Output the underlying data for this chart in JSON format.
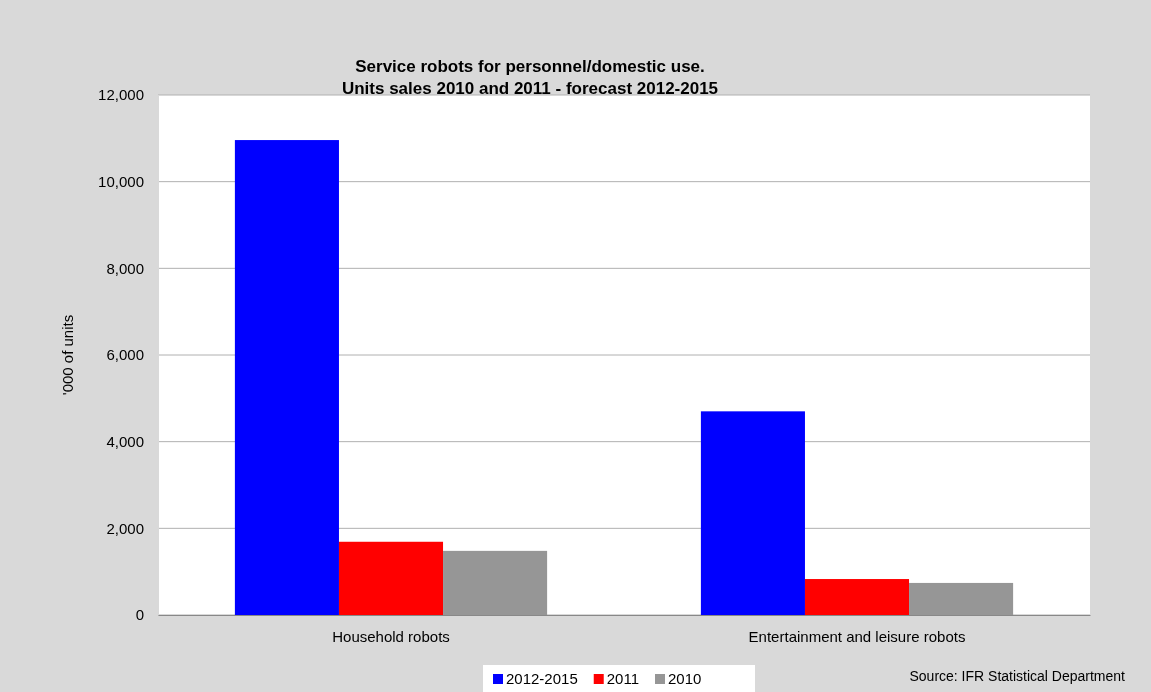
{
  "chart_data": {
    "type": "bar",
    "title": "Service robots for personnel/domestic use.\nUnits sales 2010 and 2011 - forecast 2012-2015",
    "ylabel": "'000 of units",
    "categories": [
      "Household robots",
      "Entertainment and leisure robots"
    ],
    "series": [
      {
        "name": "2012-2015",
        "color": "#0000ff",
        "values": [
          10960,
          4700
        ]
      },
      {
        "name": "2011",
        "color": "#ff0000",
        "values": [
          1690,
          830
        ]
      },
      {
        "name": "2010",
        "color": "#969696",
        "values": [
          1480,
          740
        ]
      }
    ],
    "ylim": [
      0,
      12000
    ],
    "yticks": [
      {
        "value": 0,
        "label": "0"
      },
      {
        "value": 2000,
        "label": "2,000"
      },
      {
        "value": 4000,
        "label": "4,000"
      },
      {
        "value": 6000,
        "label": "6,000"
      },
      {
        "value": 8000,
        "label": "8,000"
      },
      {
        "value": 10000,
        "label": "10,000"
      },
      {
        "value": 12000,
        "label": "12,000"
      }
    ],
    "grid": "y",
    "legend": "bottom",
    "annotations": [
      "Source: IFR Statistical Department"
    ]
  }
}
